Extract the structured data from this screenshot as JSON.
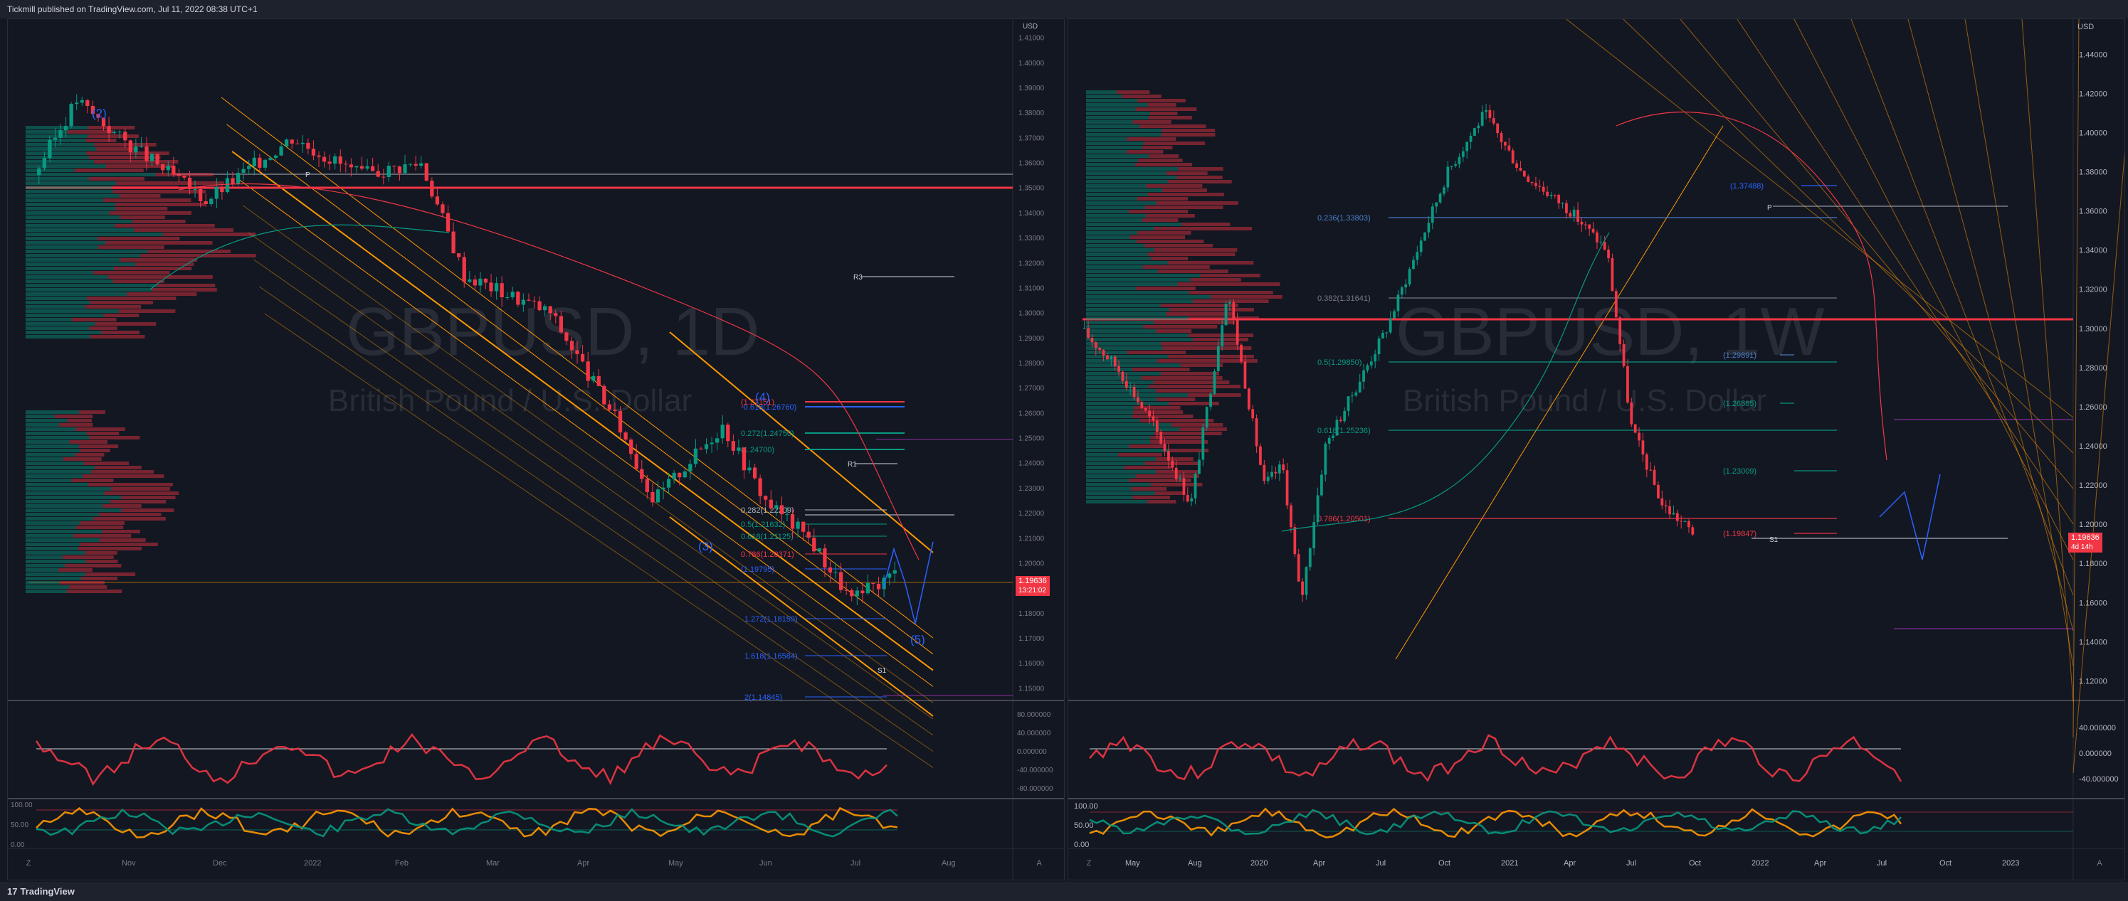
{
  "header": {
    "publisher_text": "Tickmill published on TradingView.com, Jul 11, 2022 08:38 UTC+1"
  },
  "footer": {
    "logo_text": "TradingView",
    "logo_mark": "17"
  },
  "colors": {
    "background": "#131722",
    "up": "#089981",
    "down": "#f23645",
    "orange": "#ff9800",
    "pivot_line": "#b2b5be"
  },
  "left_chart": {
    "symbol_watermark": "GBPUSD, 1D",
    "description_watermark": "British Pound / U.S. Dollar",
    "currency": "USD",
    "y_labels": [
      "1.41000",
      "1.40000",
      "1.39000",
      "1.38000",
      "1.37000",
      "1.36000",
      "1.35000",
      "1.34000",
      "1.33000",
      "1.32000",
      "1.31000",
      "1.30000",
      "1.29000",
      "1.28000",
      "1.27000",
      "1.26000",
      "1.25000",
      "1.24000",
      "1.23000",
      "1.22000",
      "1.21000",
      "1.20000",
      "1.19000",
      "1.18000",
      "1.17000",
      "1.16000",
      "1.15000"
    ],
    "x_labels": [
      "Nov",
      "Dec",
      "2022",
      "Feb",
      "Mar",
      "Apr",
      "May",
      "Jun",
      "Jul",
      "Aug"
    ],
    "last_price": "1.19636",
    "countdown": "13:21:02",
    "wave_labels": [
      "(2)",
      "(3)",
      "(4)",
      "(5)"
    ],
    "fib_labels": [
      "-0.618(1.26760)",
      "(1.27151)",
      "0.272(1.24750)",
      "(1.24700)",
      "0.282(1.22209)",
      "0.5(1.21632)",
      "0.618(1.21125)",
      "0.786(1.20371)",
      "(1.19795)",
      "1.272(1.18159)",
      "1.618(1.16584)",
      "2(1.14845)"
    ],
    "pivot_labels": [
      "P",
      "R3",
      "R1",
      "S1"
    ],
    "rsi_labels": [
      "80.000000",
      "40.000000",
      "0.000000",
      "-40.000000",
      "-80.000000"
    ],
    "stoch_labels": [
      "100.00",
      "50.00",
      "0.00"
    ]
  },
  "right_chart": {
    "symbol_watermark": "GBPUSD, 1W",
    "description_watermark": "British Pound / U.S. Dollar",
    "currency": "USD",
    "y_labels": [
      "1.44000",
      "1.42000",
      "1.40000",
      "1.38000",
      "1.36000",
      "1.34000",
      "1.32000",
      "1.30000",
      "1.28000",
      "1.26000",
      "1.24000",
      "1.22000",
      "1.20000",
      "1.18000",
      "1.16000",
      "1.14000",
      "1.12000"
    ],
    "x_labels": [
      "May",
      "Aug",
      "2020",
      "Apr",
      "Jul",
      "Oct",
      "2021",
      "Apr",
      "Jul",
      "Oct",
      "2022",
      "Apr",
      "Jul",
      "Oct",
      "2023"
    ],
    "last_price": "1.19636",
    "countdown": "4d 14h",
    "fib_labels": [
      "(1.37488)",
      "0.236(1.33803)",
      "0.382(1.31641)",
      "0.5(1.29850)",
      "(1.29891)",
      "0.618(1.25236)",
      "(1.26585)",
      "(1.23009)",
      "0.786(1.20501)",
      "(1.19847)"
    ],
    "pivot_labels": [
      "P",
      "S1"
    ],
    "rsi_labels": [
      "40.000000",
      "0.000000",
      "-40.000000"
    ],
    "stoch_labels": [
      "100.00",
      "50.00",
      "0.00"
    ]
  },
  "buttons": {
    "auto_scale": "A",
    "zoom": "Z"
  }
}
